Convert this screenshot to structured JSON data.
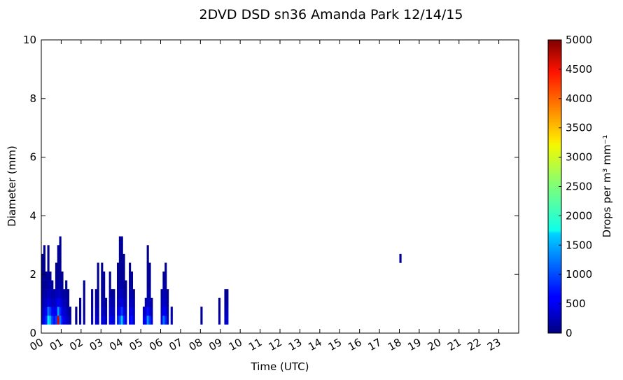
{
  "chart_data": {
    "type": "heatmap",
    "title": "2DVD DSD sn36 Amanda Park 12/14/15",
    "x_label": "Time (UTC)",
    "y_label": "Diameter (mm)",
    "colorbar_label": "Drops per m³  mm⁻¹",
    "colormap": "jet",
    "xlim": [
      0,
      24
    ],
    "ylim": [
      0,
      10
    ],
    "clim": [
      0,
      5000
    ],
    "xticks": [
      {
        "value": 0,
        "label": "00"
      },
      {
        "value": 1,
        "label": "01"
      },
      {
        "value": 2,
        "label": "02"
      },
      {
        "value": 3,
        "label": "03"
      },
      {
        "value": 4,
        "label": "04"
      },
      {
        "value": 5,
        "label": "05"
      },
      {
        "value": 6,
        "label": "06"
      },
      {
        "value": 7,
        "label": "07"
      },
      {
        "value": 8,
        "label": "08"
      },
      {
        "value": 9,
        "label": "09"
      },
      10,
      11,
      12,
      13,
      14,
      15,
      16,
      17,
      18,
      19,
      20,
      21,
      22,
      23
    ],
    "yticks": [
      0,
      2,
      4,
      6,
      8,
      10
    ],
    "cticks": [
      0,
      500,
      1000,
      1500,
      2000,
      2500,
      3000,
      3500,
      4000,
      4500,
      5000
    ],
    "y_edges": [
      0.3,
      0.6,
      0.9,
      1.2,
      1.5,
      1.8,
      2.1,
      2.4,
      2.7,
      3.0,
      3.3
    ],
    "columns": [
      {
        "x": 0.0,
        "values": [
          400,
          300,
          200,
          100,
          100,
          100,
          100,
          100
        ]
      },
      {
        "x": 0.1,
        "values": [
          600,
          400,
          300,
          200,
          100,
          100,
          100,
          100,
          100
        ]
      },
      {
        "x": 0.2,
        "values": [
          800,
          600,
          300,
          200,
          100,
          100
        ]
      },
      {
        "x": 0.3,
        "values": [
          1800,
          1200,
          500,
          300,
          200,
          100,
          100,
          100,
          100
        ]
      },
      {
        "x": 0.4,
        "values": [
          1500,
          900,
          400,
          300,
          200,
          100
        ]
      },
      {
        "x": 0.5,
        "values": [
          900,
          600,
          300,
          200,
          100
        ]
      },
      {
        "x": 0.6,
        "values": [
          700,
          500,
          300,
          200
        ]
      },
      {
        "x": 0.7,
        "values": [
          900,
          600,
          400,
          300,
          200,
          100,
          100
        ]
      },
      {
        "x": 0.8,
        "values": [
          4500,
          1400,
          600,
          300,
          200,
          100,
          100,
          100,
          100
        ]
      },
      {
        "x": 0.9,
        "values": [
          1200,
          800,
          500,
          300,
          200,
          100,
          100,
          100,
          100,
          100
        ]
      },
      {
        "x": 1.0,
        "values": [
          700,
          500,
          300,
          200,
          100,
          100
        ]
      },
      {
        "x": 1.1,
        "values": [
          500,
          400,
          300,
          200
        ]
      },
      {
        "x": 1.2,
        "values": [
          400,
          300,
          200,
          100,
          100
        ]
      },
      {
        "x": 1.3,
        "values": [
          300,
          200,
          100,
          100
        ]
      },
      {
        "x": 1.4,
        "values": [
          200,
          100
        ]
      },
      {
        "x": 1.7,
        "values": [
          100,
          100
        ]
      },
      {
        "x": 1.9,
        "values": [
          200,
          100,
          100
        ]
      },
      {
        "x": 2.1,
        "values": [
          200,
          100,
          100,
          100,
          100
        ]
      },
      {
        "x": 2.5,
        "values": [
          300,
          200,
          100,
          100
        ]
      },
      {
        "x": 2.7,
        "values": [
          400,
          300,
          200,
          100
        ]
      },
      {
        "x": 2.8,
        "values": [
          300,
          200,
          100,
          100,
          100,
          100,
          100
        ]
      },
      {
        "x": 3.0,
        "values": [
          400,
          300,
          200,
          100,
          100,
          100,
          100
        ]
      },
      {
        "x": 3.1,
        "values": [
          500,
          300,
          200,
          100,
          100,
          100
        ]
      },
      {
        "x": 3.2,
        "values": [
          300,
          200,
          100
        ]
      },
      {
        "x": 3.4,
        "values": [
          600,
          400,
          300,
          200,
          100,
          100
        ]
      },
      {
        "x": 3.5,
        "values": [
          500,
          300,
          200,
          100
        ]
      },
      {
        "x": 3.6,
        "values": [
          400,
          300,
          200,
          100
        ]
      },
      {
        "x": 3.8,
        "values": [
          800,
          500,
          300,
          200,
          100,
          100,
          100
        ]
      },
      {
        "x": 3.9,
        "values": [
          1000,
          600,
          400,
          300,
          200,
          100,
          100,
          100,
          100,
          100
        ]
      },
      {
        "x": 4.0,
        "values": [
          1600,
          900,
          500,
          300,
          200,
          100,
          100,
          100,
          100,
          100
        ]
      },
      {
        "x": 4.1,
        "values": [
          800,
          500,
          300,
          200,
          100,
          100,
          100,
          100
        ]
      },
      {
        "x": 4.2,
        "values": [
          500,
          300,
          200,
          100,
          100
        ]
      },
      {
        "x": 4.4,
        "values": [
          600,
          400,
          300,
          200,
          100,
          100,
          100
        ]
      },
      {
        "x": 4.5,
        "values": [
          700,
          500,
          300,
          200,
          100,
          100
        ]
      },
      {
        "x": 4.6,
        "values": [
          400,
          300,
          200,
          100
        ]
      },
      {
        "x": 5.1,
        "values": [
          500,
          300
        ]
      },
      {
        "x": 5.2,
        "values": [
          600,
          400,
          200
        ]
      },
      {
        "x": 5.3,
        "values": [
          1400,
          700,
          300,
          200,
          100,
          100,
          100,
          100,
          100
        ]
      },
      {
        "x": 5.4,
        "values": [
          900,
          500,
          300,
          200,
          100,
          100,
          100
        ]
      },
      {
        "x": 5.5,
        "values": [
          400,
          200,
          100
        ]
      },
      {
        "x": 6.0,
        "values": [
          500,
          300,
          200,
          100
        ]
      },
      {
        "x": 6.1,
        "values": [
          1200,
          600,
          400,
          300,
          200,
          100
        ]
      },
      {
        "x": 6.2,
        "values": [
          800,
          500,
          300,
          200,
          100,
          100,
          100
        ]
      },
      {
        "x": 6.3,
        "values": [
          300,
          200,
          100,
          100
        ]
      },
      {
        "x": 6.5,
        "values": [
          300,
          200
        ]
      },
      {
        "x": 8.0,
        "values": [
          100,
          100
        ]
      },
      {
        "x": 8.9,
        "values": [
          200,
          100,
          100
        ]
      },
      {
        "x": 9.2,
        "values": [
          300,
          200,
          100,
          100
        ]
      },
      {
        "x": 9.3,
        "values": [
          400,
          300,
          200,
          100
        ]
      },
      {
        "x": 18.0,
        "values": [
          null,
          null,
          null,
          null,
          null,
          null,
          null,
          100
        ]
      }
    ]
  }
}
